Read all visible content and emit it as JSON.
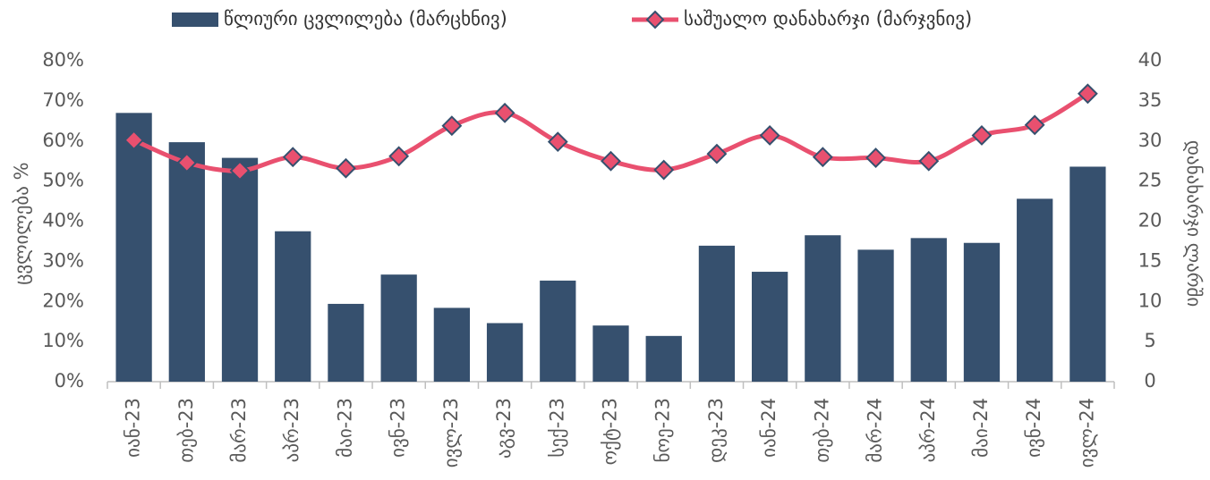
{
  "chart_data": {
    "type": "bar_line",
    "legend_position": "top",
    "ylabel": "ცვლილება %",
    "y2label": "დანახარჯი ლარში",
    "categories": [
      "იან-23",
      "თებ-23",
      "მარ-23",
      "აპრ-23",
      "მაი-23",
      "ივნ-23",
      "ივლ-23",
      "აგვ-23",
      "სექ-23",
      "ოქტ-23",
      "ნოე-23",
      "დეკ-23",
      "იან-24",
      "თებ-24",
      "მარ-24",
      "აპრ-24",
      "მაი-24",
      "ივნ-24",
      "ივლ-24"
    ],
    "series": [
      {
        "name": "წლიური ცვლილება (მარცხნივ)",
        "type": "bar",
        "color": "#36506e",
        "axis": "y",
        "values": [
          67,
          59.7,
          55.8,
          37.5,
          19.4,
          26.7,
          18.4,
          14.6,
          25.2,
          14.0,
          11.4,
          33.9,
          27.4,
          36.5,
          32.9,
          35.8,
          34.6,
          45.6,
          53.6
        ]
      },
      {
        "name": "საშუალო დანახარჯი (მარჯვნივ)",
        "type": "line",
        "color": "#e9506f",
        "axis": "y2",
        "values": [
          30.1,
          27.3,
          26.3,
          28.0,
          26.6,
          28.1,
          31.9,
          33.5,
          29.9,
          27.5,
          26.4,
          28.4,
          30.7,
          28.0,
          27.9,
          27.5,
          30.7,
          32.0,
          35.9
        ]
      }
    ],
    "ylim": [
      0,
      80
    ],
    "yticks": [
      {
        "value": 0,
        "label": "0%"
      },
      {
        "value": 10,
        "label": "10%"
      },
      {
        "value": 20,
        "label": "20%"
      },
      {
        "value": 30,
        "label": "30%"
      },
      {
        "value": 40,
        "label": "40%"
      },
      {
        "value": 50,
        "label": "50%"
      },
      {
        "value": 60,
        "label": "60%"
      },
      {
        "value": 70,
        "label": "70%"
      },
      {
        "value": 80,
        "label": "80%"
      }
    ],
    "y2lim": [
      0,
      40
    ],
    "y2ticks": [
      0,
      5,
      10,
      15,
      20,
      25,
      30,
      35,
      40
    ]
  }
}
